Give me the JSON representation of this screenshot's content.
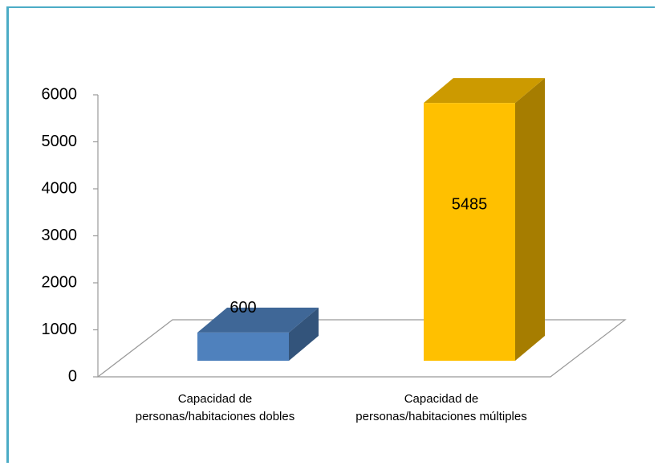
{
  "chart_data": {
    "type": "bar3d",
    "categories": [
      "Capacidad de personas/habitaciones dobles",
      "Capacidad de personas/habitaciones múltiples"
    ],
    "values": [
      600,
      5485
    ],
    "colors": [
      "#4f81bd",
      "#ffc000"
    ],
    "ylim": [
      0,
      6000
    ],
    "yticks": [
      0,
      1000,
      2000,
      3000,
      4000,
      5000,
      6000
    ],
    "grid": false
  }
}
